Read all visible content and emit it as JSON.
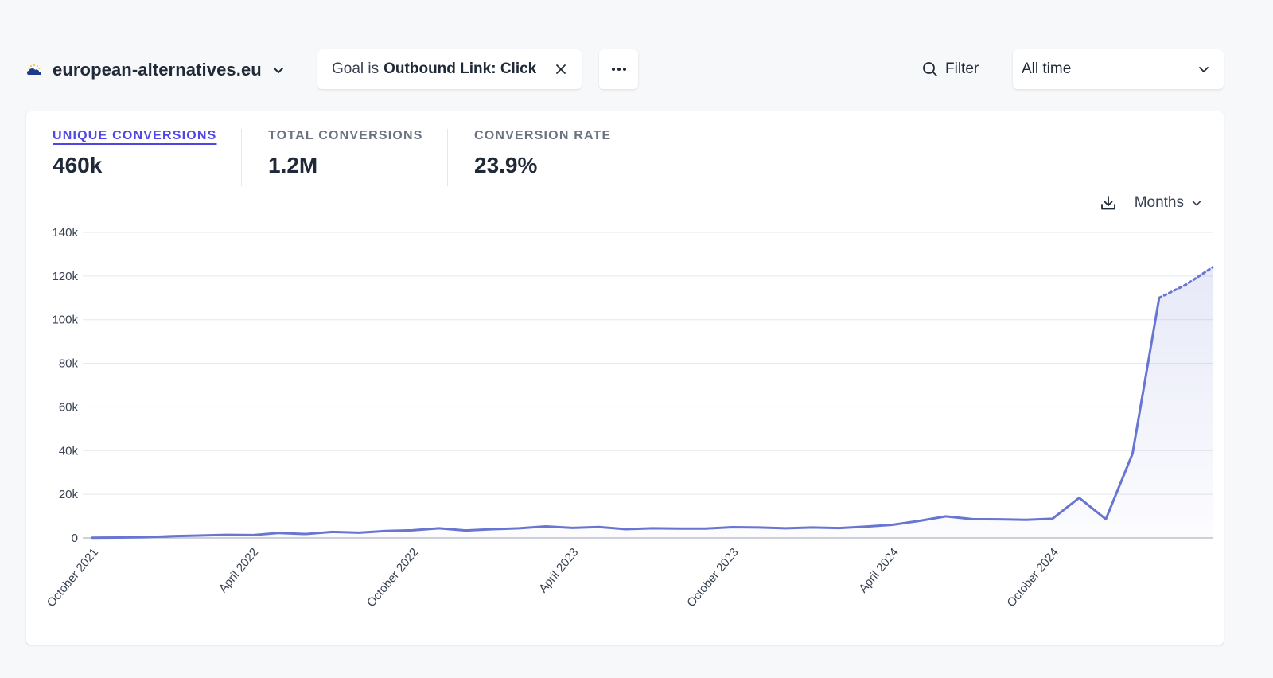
{
  "header": {
    "site_name": "european-alternatives.eu",
    "goal_filter": {
      "prefix": "Goal is",
      "value": "Outbound Link: Click"
    },
    "more_label": "···",
    "filter_label": "Filter",
    "period_label": "All time"
  },
  "metrics": [
    {
      "label": "UNIQUE CONVERSIONS",
      "value": "460k"
    },
    {
      "label": "TOTAL CONVERSIONS",
      "value": "1.2M"
    },
    {
      "label": "CONVERSION RATE",
      "value": "23.9%"
    }
  ],
  "chart_controls": {
    "interval_label": "Months"
  },
  "colors": {
    "accent": "#4f46e5",
    "line": "#6875d1",
    "grid": "#e5e7eb"
  },
  "chart_data": {
    "type": "line",
    "ylim": [
      0,
      140000
    ],
    "yticks": [
      "0",
      "20k",
      "40k",
      "60k",
      "80k",
      "100k",
      "120k",
      "140k"
    ],
    "xtick_labels": [
      "October 2021",
      "April 2022",
      "October 2022",
      "April 2023",
      "October 2023",
      "April 2024",
      "October 2024"
    ],
    "x": [
      "2021-10",
      "2021-11",
      "2021-12",
      "2022-01",
      "2022-02",
      "2022-03",
      "2022-04",
      "2022-05",
      "2022-06",
      "2022-07",
      "2022-08",
      "2022-09",
      "2022-10",
      "2022-11",
      "2022-12",
      "2023-01",
      "2023-02",
      "2023-03",
      "2023-04",
      "2023-05",
      "2023-06",
      "2023-07",
      "2023-08",
      "2023-09",
      "2023-10",
      "2023-11",
      "2023-12",
      "2024-01",
      "2024-02",
      "2024-03",
      "2024-04",
      "2024-05",
      "2024-06",
      "2024-07",
      "2024-08",
      "2024-09",
      "2024-10",
      "2024-11",
      "2024-12",
      "2025-01",
      "2025-02",
      "2025-03",
      "2025-04"
    ],
    "series": [
      {
        "values": [
          100,
          200,
          300,
          800,
          1100,
          1400,
          1300,
          2300,
          1800,
          2800,
          2400,
          3200,
          3500,
          4400,
          3400,
          4000,
          4400,
          5300,
          4600,
          5000,
          4000,
          4400,
          4300,
          4300,
          4900,
          4800,
          4400,
          4800,
          4500,
          5200,
          6000,
          7800,
          9900,
          8600,
          8500,
          8300,
          8800,
          18400,
          8600,
          38600,
          110000,
          116000,
          124000
        ],
        "partial_from_index": 40
      }
    ],
    "grid": true
  }
}
